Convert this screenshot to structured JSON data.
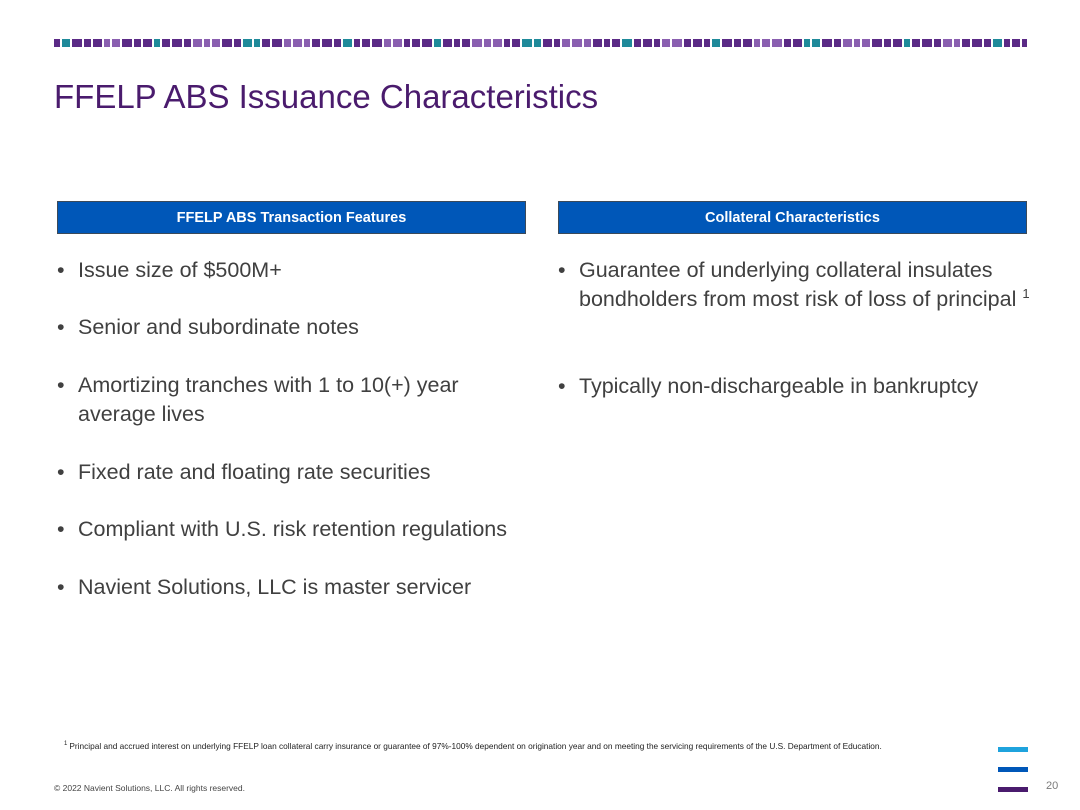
{
  "slide": {
    "title": "FFELP ABS Issuance Characteristics",
    "page_number": "20"
  },
  "left_column": {
    "header": "FFELP ABS Transaction Features",
    "bullets": [
      {
        "text": "Issue size of $500M+"
      },
      {
        "text": "Senior and subordinate notes"
      },
      {
        "text": "Amortizing tranches with 1 to 10(+) year average lives"
      },
      {
        "text": "Fixed rate and floating rate securities"
      },
      {
        "text": "Compliant with U.S. risk retention regulations"
      },
      {
        "text": "Navient Solutions, LLC is master servicer"
      }
    ]
  },
  "right_column": {
    "header": "Collateral Characteristics",
    "bullets": [
      {
        "text": "Guarantee of underlying collateral insulates bondholders from most risk of loss of principal",
        "footnote_ref": "1"
      },
      {
        "text": "Typically non-dischargeable in bankruptcy"
      }
    ]
  },
  "bullet_glyph": "•",
  "footnote": {
    "marker": "1",
    "text": "Principal and accrued interest on underlying FFELP loan collateral carry insurance or guarantee of 97%-100% dependent on origination year and on meeting the servicing requirements of the U.S. Department of Education."
  },
  "copyright": "© 2022 Navient Solutions, LLC. All rights reserved.",
  "colors": {
    "title": "#4a1b6d",
    "header_bg": "#0057b8",
    "body_text": "#404040",
    "band_purple": "#5b2a86",
    "band_teal": "#1f8a9a",
    "band_light_purple": "#8a5fb0",
    "logo_cyan": "#1fa3dd",
    "logo_blue": "#0057b8",
    "logo_purple": "#4a1b6d"
  }
}
